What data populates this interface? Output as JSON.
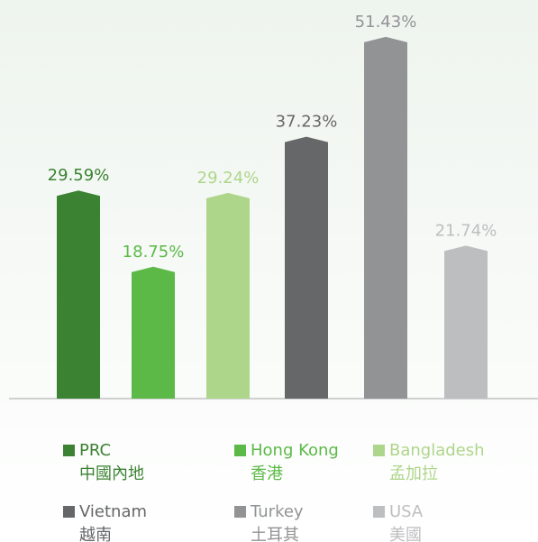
{
  "chart_data": {
    "type": "bar",
    "categories": [
      "PRC",
      "Hong Kong",
      "Bangladesh",
      "Vietnam",
      "Turkey",
      "USA"
    ],
    "categories_zh": [
      "中國內地",
      "香港",
      "孟加拉",
      "越南",
      "土耳其",
      "美國"
    ],
    "values": [
      29.59,
      18.75,
      29.24,
      37.23,
      51.43,
      21.74
    ],
    "value_labels": [
      "29.59%",
      "18.75%",
      "29.24%",
      "37.23%",
      "51.43%",
      "21.74%"
    ],
    "colors": [
      "#3b8232",
      "#5cb947",
      "#aed68a",
      "#666769",
      "#929395",
      "#bdbec0"
    ]
  }
}
